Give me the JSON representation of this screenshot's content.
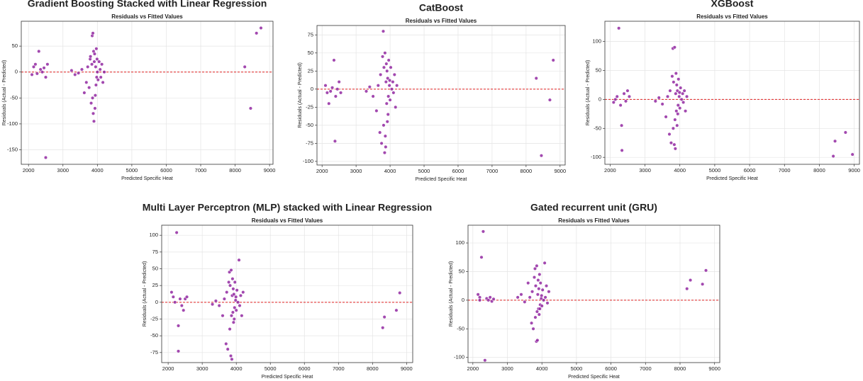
{
  "chart_data": [
    {
      "type": "scatter",
      "title": "Gradient Boosting Stacked with Linear Regression",
      "subtitle": "Residuals vs Fitted Values",
      "xlabel": "Predicted Specific Heat",
      "ylabel": "Residuals (Actual - Predicted)",
      "color": "#8b1a9b",
      "grid": true,
      "hline": 0,
      "hline_color": "#e02020",
      "xlim": [
        1790,
        9100
      ],
      "ylim": [
        -178,
        98
      ],
      "xticks": [
        2000,
        3000,
        4000,
        5000,
        6000,
        7000,
        8000,
        9000
      ],
      "yticks": [
        -150,
        -100,
        -50,
        0,
        50
      ],
      "x": [
        2100,
        2150,
        2200,
        2250,
        2300,
        2350,
        2400,
        2450,
        2500,
        2550,
        2500,
        3250,
        3350,
        3450,
        3550,
        3620,
        3680,
        3720,
        3760,
        3790,
        3800,
        3820,
        3840,
        3850,
        3860,
        3870,
        3880,
        3890,
        3900,
        3910,
        3920,
        3930,
        3940,
        3950,
        3960,
        3970,
        3980,
        3990,
        4000,
        4020,
        4050,
        4080,
        4100,
        4130,
        4160,
        4200,
        8280,
        8450,
        8620,
        8750
      ],
      "values": [
        -5,
        10,
        15,
        -3,
        40,
        5,
        0,
        8,
        -10,
        15,
        -165,
        3,
        -5,
        -2,
        5,
        -40,
        -20,
        10,
        -30,
        25,
        30,
        -60,
        15,
        70,
        -50,
        75,
        -80,
        40,
        -95,
        20,
        35,
        -70,
        -45,
        10,
        -25,
        45,
        -10,
        25,
        0,
        -15,
        20,
        5,
        -10,
        15,
        -20,
        0,
        10,
        -70,
        75,
        85
      ]
    },
    {
      "type": "scatter",
      "title": "CatBoost",
      "subtitle": "Residuals vs Fitted Values",
      "xlabel": "Predicted Specific Heat",
      "ylabel": "Residuals (Actual - Predicted)",
      "color": "#8b1a9b",
      "grid": true,
      "hline": 0,
      "hline_color": "#e02020",
      "xlim": [
        1850,
        9150
      ],
      "ylim": [
        -105,
        88
      ],
      "xticks": [
        2000,
        3000,
        4000,
        5000,
        6000,
        7000,
        8000,
        9000
      ],
      "yticks": [
        -100,
        -75,
        -50,
        -25,
        0,
        25,
        50,
        75
      ],
      "x": [
        2100,
        2150,
        2200,
        2250,
        2300,
        2350,
        2380,
        2400,
        2450,
        2500,
        2550,
        3300,
        3400,
        3500,
        3600,
        3650,
        3700,
        3720,
        3750,
        3780,
        3800,
        3810,
        3820,
        3840,
        3850,
        3860,
        3870,
        3880,
        3890,
        3900,
        3910,
        3920,
        3930,
        3950,
        3960,
        3980,
        4000,
        4020,
        4050,
        4080,
        4100,
        4130,
        4160,
        4200,
        3940,
        3990,
        8300,
        8450,
        8700,
        8800
      ],
      "values": [
        5,
        -5,
        -20,
        -3,
        2,
        40,
        -72,
        -10,
        0,
        10,
        -5,
        -3,
        3,
        -10,
        -30,
        5,
        -60,
        20,
        -75,
        45,
        80,
        -50,
        30,
        -88,
        50,
        -65,
        -80,
        10,
        35,
        -20,
        25,
        -45,
        15,
        -10,
        40,
        5,
        -15,
        30,
        0,
        10,
        -5,
        20,
        -25,
        5,
        -35,
        12,
        15,
        -92,
        -15,
        40
      ]
    },
    {
      "type": "scatter",
      "title": "XGBoost",
      "subtitle": "Residuals vs Fitted Values",
      "xlabel": "Predicted Specific Heat",
      "ylabel": "Residuals (Actual - Predicted)",
      "color": "#8b1a9b",
      "grid": true,
      "hline": 0,
      "hline_color": "#e02020",
      "xlim": [
        1850,
        9150
      ],
      "ylim": [
        -112,
        135
      ],
      "xticks": [
        2000,
        3000,
        4000,
        5000,
        6000,
        7000,
        8000,
        9000
      ],
      "yticks": [
        -100,
        -50,
        0,
        50,
        100
      ],
      "x": [
        2100,
        2150,
        2200,
        2250,
        2300,
        2330,
        2340,
        2400,
        2450,
        2500,
        2550,
        3300,
        3400,
        3500,
        3600,
        3650,
        3700,
        3720,
        3750,
        3780,
        3800,
        3810,
        3820,
        3840,
        3850,
        3860,
        3870,
        3880,
        3890,
        3900,
        3910,
        3920,
        3930,
        3950,
        3960,
        3980,
        4000,
        4020,
        4050,
        4080,
        4100,
        4130,
        4160,
        4200,
        3940,
        3990,
        8400,
        8450,
        8750,
        8950
      ],
      "values": [
        -5,
        0,
        5,
        123,
        -10,
        -45,
        -88,
        10,
        -3,
        15,
        5,
        -3,
        3,
        -8,
        -30,
        5,
        -60,
        15,
        -75,
        40,
        88,
        -50,
        30,
        -78,
        90,
        -35,
        -85,
        10,
        45,
        -20,
        25,
        -45,
        15,
        -10,
        35,
        5,
        -15,
        20,
        0,
        10,
        -5,
        15,
        -20,
        5,
        -25,
        12,
        -98,
        -72,
        -57,
        -95
      ]
    },
    {
      "type": "scatter",
      "title": "Multi Layer Perceptron (MLP) stacked with Linear Regression",
      "subtitle": "Residuals vs Fitted Values",
      "xlabel": "Predicted Specific Heat",
      "ylabel": "Residuals (Actual - Predicted)",
      "color": "#8b1a9b",
      "grid": true,
      "hline": 0,
      "hline_color": "#e02020",
      "xlim": [
        1810,
        9180
      ],
      "ylim": [
        -90,
        115
      ],
      "xticks": [
        2000,
        3000,
        4000,
        5000,
        6000,
        7000,
        8000,
        9000
      ],
      "yticks": [
        -75,
        -50,
        -25,
        0,
        25,
        50,
        75,
        100
      ],
      "x": [
        2100,
        2150,
        2200,
        2250,
        2300,
        2300,
        2350,
        2400,
        2450,
        2500,
        2550,
        3300,
        3400,
        3500,
        3600,
        3650,
        3700,
        3720,
        3750,
        3780,
        3800,
        3810,
        3820,
        3840,
        3850,
        3860,
        3870,
        3880,
        3890,
        3900,
        3910,
        3920,
        3930,
        3950,
        3960,
        3980,
        4000,
        4020,
        4050,
        4080,
        4100,
        4130,
        4160,
        4200,
        3940,
        3990,
        8300,
        8350,
        8700,
        8800
      ],
      "values": [
        15,
        8,
        0,
        104,
        -35,
        -73,
        5,
        -5,
        -12,
        5,
        8,
        -3,
        2,
        -5,
        -20,
        5,
        -62,
        15,
        -70,
        30,
        45,
        -40,
        25,
        -80,
        48,
        -20,
        -85,
        10,
        35,
        -15,
        20,
        -30,
        12,
        -8,
        30,
        3,
        -12,
        18,
        0,
        63,
        -5,
        10,
        -20,
        15,
        -25,
        8,
        -38,
        -22,
        -12,
        14
      ]
    },
    {
      "type": "scatter",
      "title": "Gated recurrent unit (GRU)",
      "subtitle": "Residuals vs Fitted Values",
      "xlabel": "Predicted Specific Heat",
      "ylabel": "Residuals (Actual - Predicted)",
      "color": "#8b1a9b",
      "grid": true,
      "hline": 0,
      "hline_color": "#e02020",
      "xlim": [
        1860,
        9150
      ],
      "ylim": [
        -109,
        131
      ],
      "xticks": [
        2000,
        3000,
        4000,
        5000,
        6000,
        7000,
        8000,
        9000
      ],
      "yticks": [
        -100,
        -50,
        0,
        50,
        100
      ],
      "x": [
        2150,
        2200,
        2250,
        2300,
        2350,
        2400,
        2450,
        2500,
        2550,
        2600,
        2200,
        3300,
        3400,
        3500,
        3600,
        3650,
        3700,
        3720,
        3750,
        3780,
        3800,
        3810,
        3820,
        3840,
        3850,
        3860,
        3870,
        3880,
        3890,
        3900,
        3910,
        3920,
        3930,
        3950,
        3960,
        3980,
        4000,
        4020,
        4050,
        4080,
        4100,
        4130,
        4160,
        4200,
        3940,
        3990,
        8200,
        8300,
        8650,
        8750
      ],
      "values": [
        10,
        5,
        75,
        120,
        -105,
        3,
        0,
        5,
        -2,
        2,
        0,
        5,
        10,
        -3,
        30,
        5,
        -40,
        15,
        -50,
        40,
        55,
        -30,
        25,
        -72,
        60,
        -20,
        -70,
        10,
        35,
        -15,
        20,
        -25,
        45,
        -8,
        30,
        3,
        -10,
        18,
        0,
        65,
        5,
        25,
        -5,
        15,
        -15,
        8,
        20,
        35,
        28,
        52
      ]
    }
  ]
}
